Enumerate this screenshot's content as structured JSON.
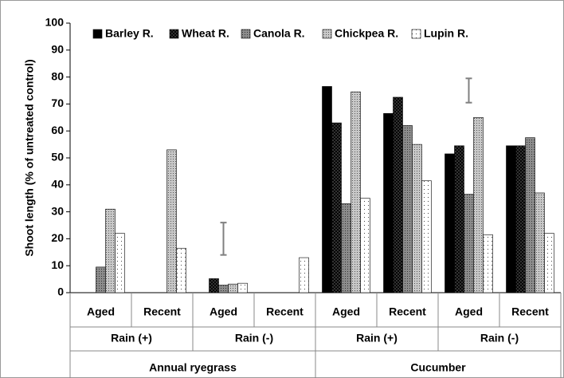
{
  "chart_data": {
    "type": "bar",
    "y_label": "Shoot length (% of untreated control)",
    "categories": [
      "Aged",
      "Recent",
      "Aged",
      "Recent",
      "Aged",
      "Recent",
      "Aged",
      "Recent"
    ],
    "categories_level2": [
      "Rain (+)",
      "Rain (-)",
      "Rain (+)",
      "Rain (-)"
    ],
    "categories_level3": [
      "Annual ryegrass",
      "Cucumber"
    ],
    "series": [
      {
        "name": "Barley R.",
        "color": "#000000",
        "values": [
          0,
          0,
          0,
          0,
          76.5,
          66.5,
          51.5,
          54.5
        ]
      },
      {
        "name": "Wheat R.",
        "color": "#444444",
        "values": [
          0,
          0,
          5.2,
          0,
          63,
          72.5,
          54.5,
          54.5
        ]
      },
      {
        "name": "Canola R.",
        "color": "#8c8c8c",
        "values": [
          9.5,
          0,
          2.8,
          0,
          33,
          62,
          36.5,
          57.5
        ]
      },
      {
        "name": "Chickpea R.",
        "color": "#c8c8c8",
        "values": [
          31,
          53,
          3.2,
          0,
          74.5,
          55,
          65,
          37
        ]
      },
      {
        "name": "Lupin R.",
        "color": "#ffffff",
        "values": [
          22,
          16.5,
          3.5,
          13,
          35,
          41.5,
          21.5,
          22
        ]
      }
    ],
    "error_ranges": [
      null,
      null,
      [
        14,
        26
      ],
      null,
      null,
      null,
      [
        70.5,
        79.5
      ],
      null
    ],
    "error_color": "#808080",
    "ylim": [
      0,
      100
    ],
    "yticks": [
      0,
      10,
      20,
      30,
      40,
      50,
      60,
      70,
      80,
      90,
      100
    ],
    "grid": false
  }
}
